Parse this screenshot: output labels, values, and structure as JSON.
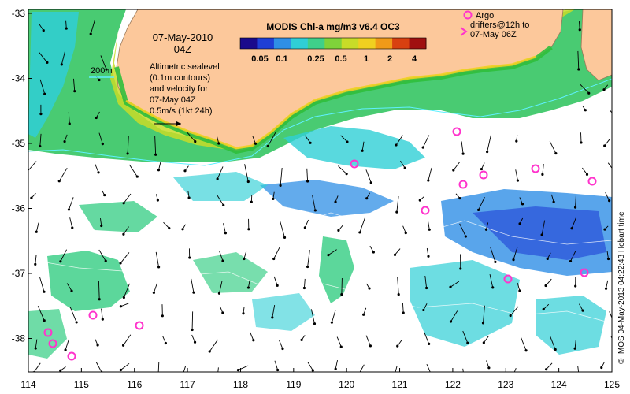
{
  "title": "MODIS Chl-a mg/m3 v6.4 OC3",
  "colorbar": {
    "colors": [
      "#1a0a8c",
      "#1f3fd6",
      "#2f8fe6",
      "#2fcfd6",
      "#3fd08a",
      "#7fd23a",
      "#c8dc28",
      "#f0d020",
      "#f09a18",
      "#d84010",
      "#a01010"
    ],
    "ticks": [
      "0.05",
      "0.1",
      "0.25",
      "0.5",
      "1",
      "2",
      "4"
    ]
  },
  "date_line1": "07-May-2010",
  "date_line2": "04Z",
  "depth_contour_label": "200m",
  "info_lines": [
    "Altimetric sealevel",
    "(0.1m contours)",
    "and velocity for",
    "07-May 04Z",
    "0.5m/s (1kt 24h)"
  ],
  "legend": {
    "argo_label": "Argo",
    "drifter_lines": [
      "drifters@12h to",
      "07-May 06Z"
    ]
  },
  "credit": "© IMOS 04-May-2013 04:22:43 Hobart time",
  "x_ticks": [
    "114",
    "115",
    "116",
    "117",
    "118",
    "119",
    "120",
    "121",
    "122",
    "123",
    "124",
    "125"
  ],
  "y_ticks": [
    "-33",
    "-34",
    "-35",
    "-36",
    "-37",
    "-38"
  ],
  "colors": {
    "land": "#fcc89b",
    "coast_high": "#2fbf3c",
    "chl_mid": "#3fd08a",
    "chl_low": "#2f8fe6",
    "chl_deep": "#1f3fd6",
    "argo": "#ff33cc",
    "contour": "#5ff0ff",
    "arrow": "#000000"
  }
}
